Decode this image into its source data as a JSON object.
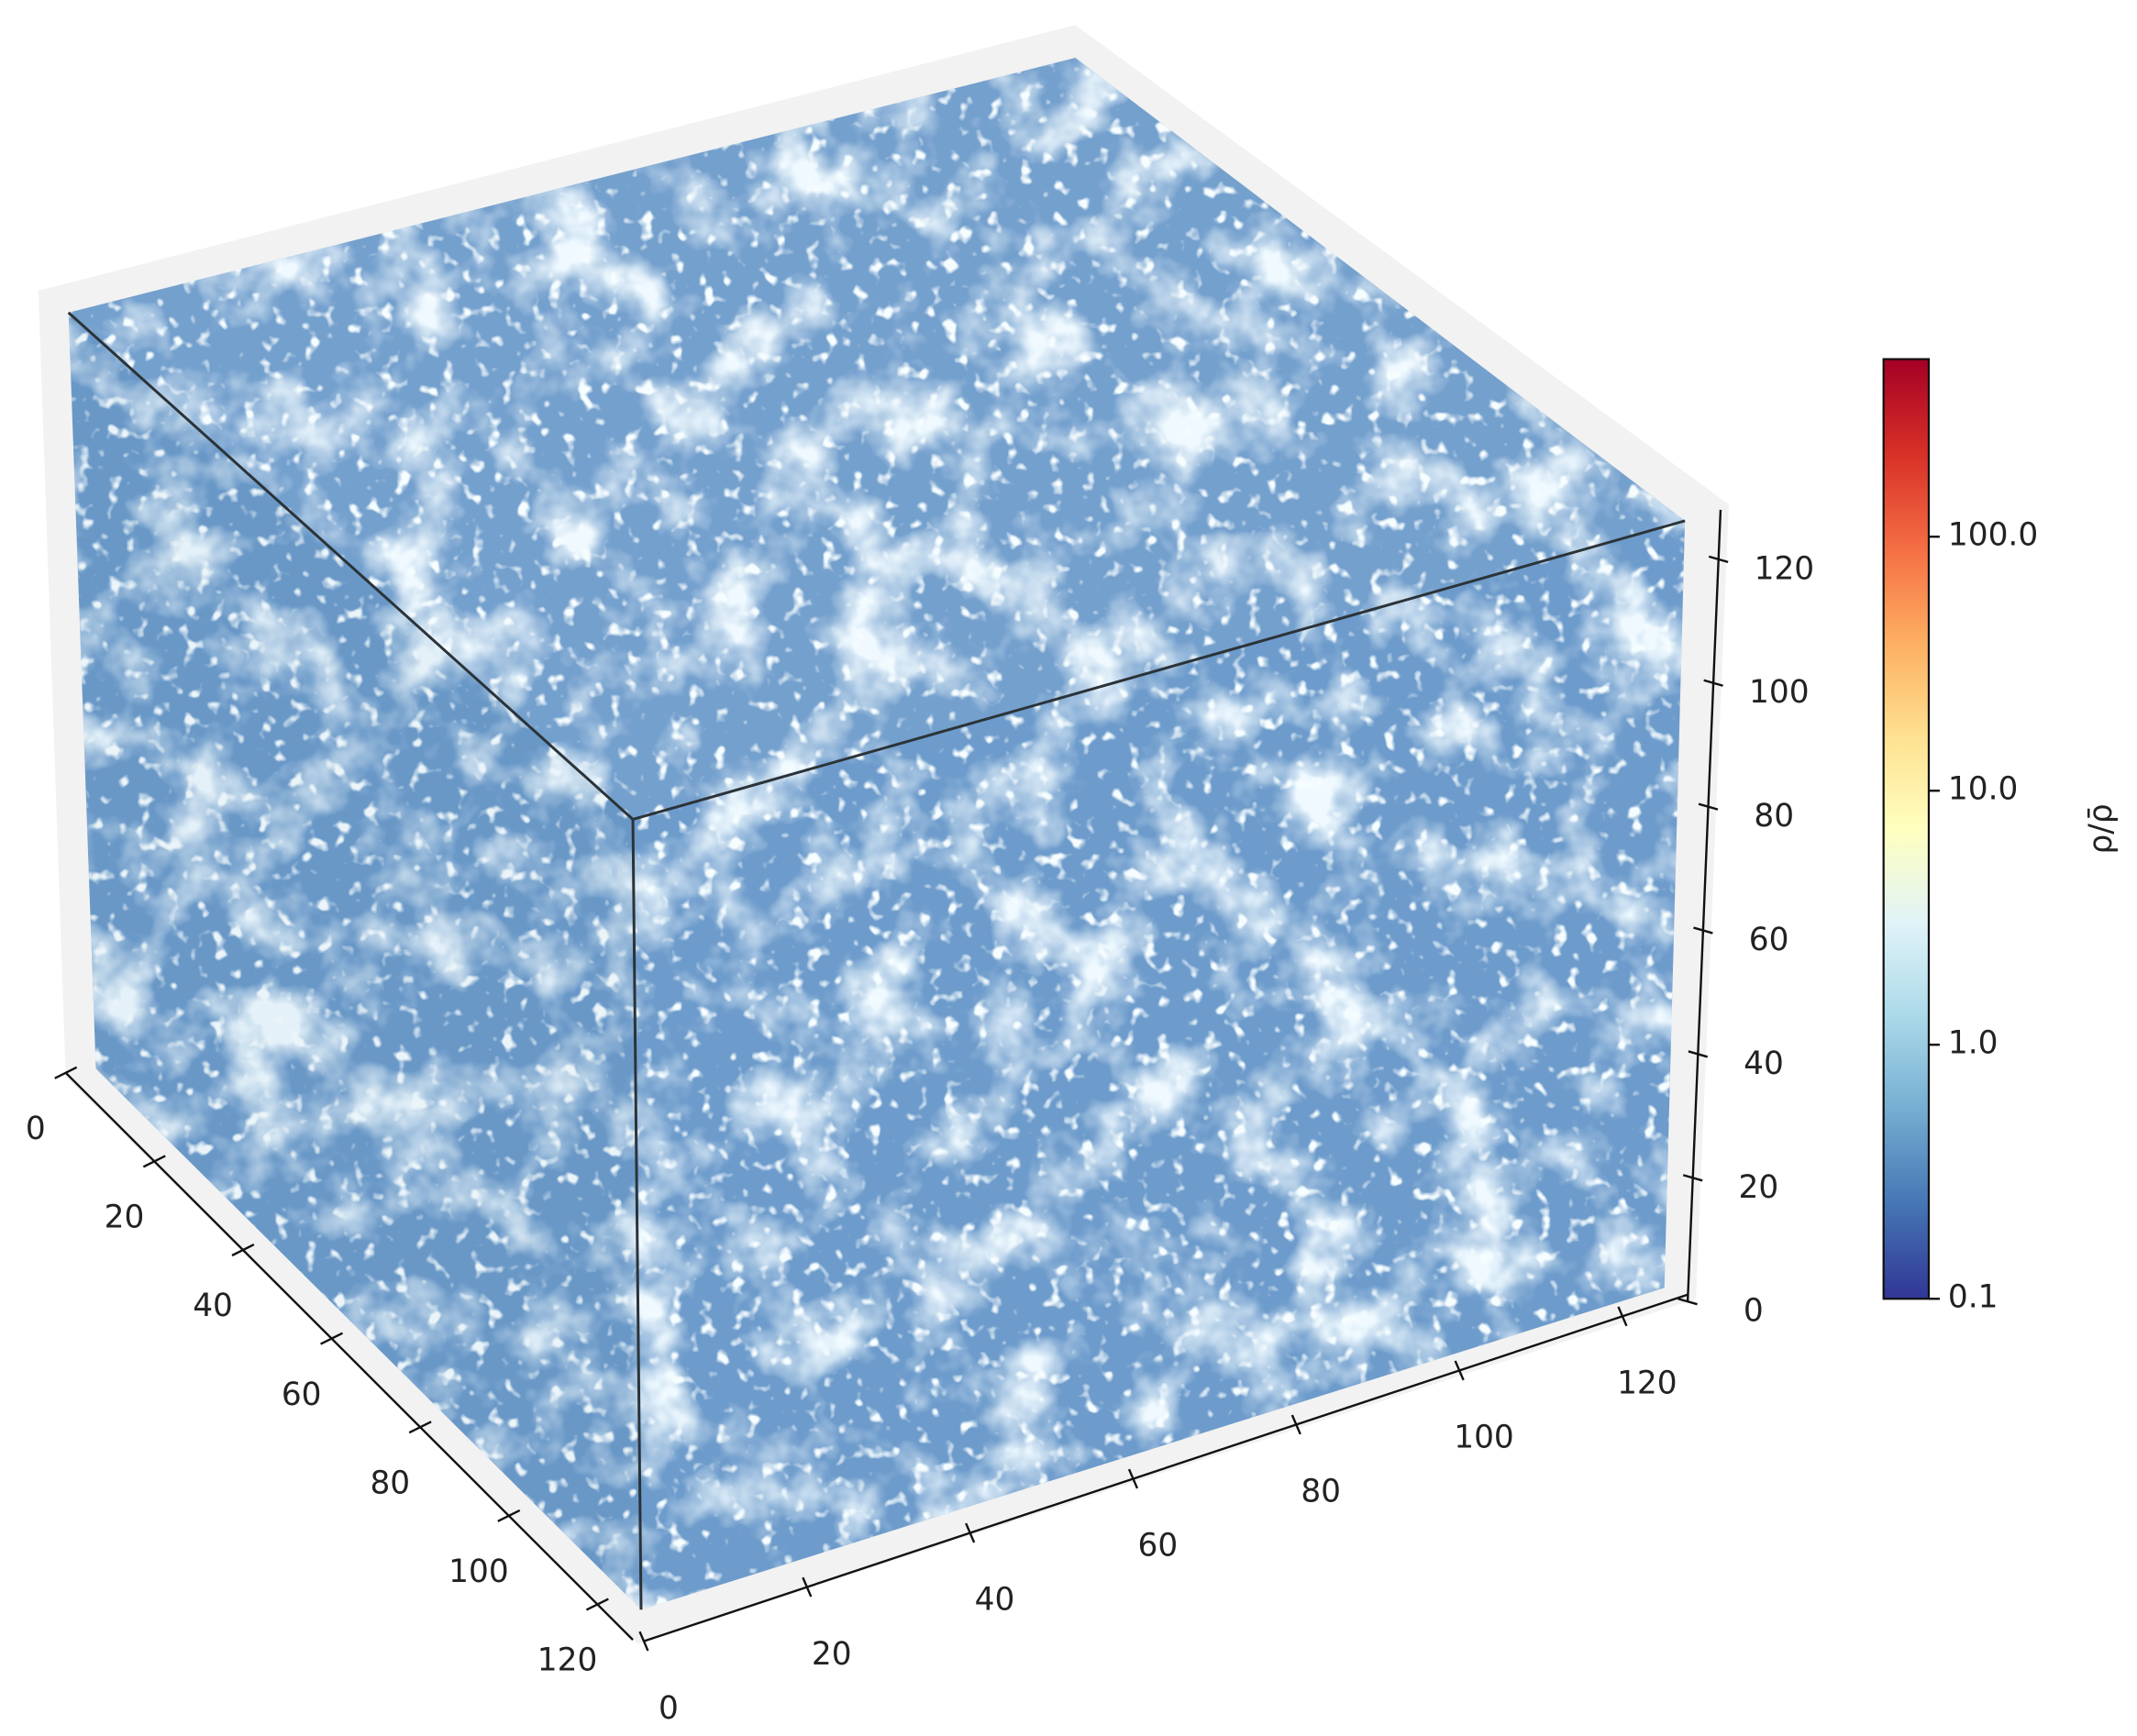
{
  "chart_data": {
    "type": "cube",
    "xlim": [
      0,
      128
    ],
    "xticks": [
      0,
      20,
      40,
      60,
      80,
      100,
      120
    ],
    "ylim": [
      0,
      128
    ],
    "yticks": [
      0,
      20,
      40,
      60,
      80,
      100,
      120
    ],
    "zlim": [
      0,
      128
    ],
    "zticks": [
      0,
      20,
      40,
      60,
      80,
      100,
      120
    ],
    "colorbar": {
      "label": "ρ/ρ̄",
      "lim": [
        0.1,
        500
      ],
      "log": true,
      "ticks": [
        0.1,
        {
          "value": 1,
          "label": "1.0"
        },
        {
          "value": 10,
          "label": "10.0"
        },
        {
          "value": 100,
          "label": "100.0"
        }
      ],
      "colors": [
        "#313695",
        "#4575b4",
        "#74add1",
        "#abd9e9",
        "#e0f3f8",
        "#ffffbf",
        "#fee090",
        "#fdae61",
        "#f46d43",
        "#d73027",
        "#a50026"
      ]
    }
  }
}
